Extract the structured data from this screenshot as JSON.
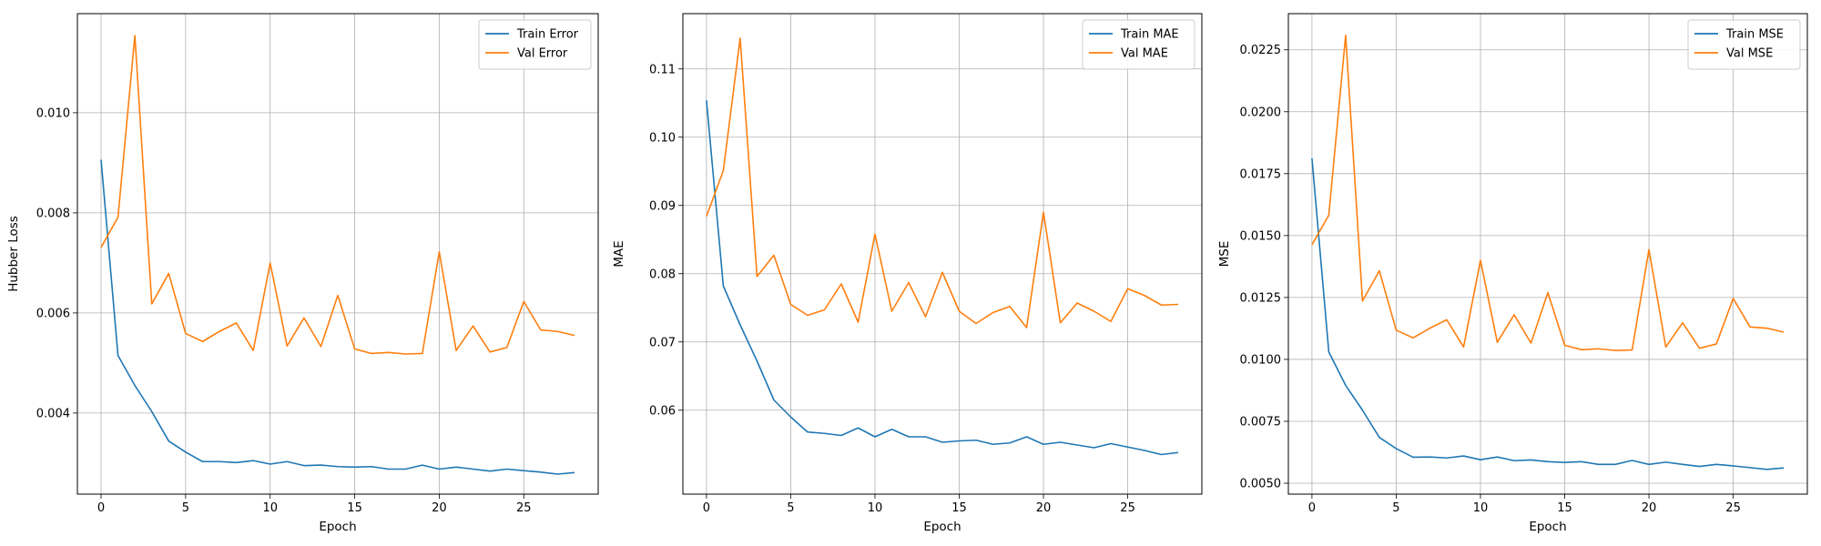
{
  "colors": {
    "train": "#1f77b4",
    "val": "#ff7f0e",
    "grid": "#b0b0b0",
    "axes": "#000000"
  },
  "chart_data": [
    {
      "type": "line",
      "xlabel": "Epoch",
      "ylabel": "Hubber Loss",
      "xlim": [
        -1.4,
        29.4
      ],
      "ylim": [
        0.00238,
        0.01198
      ],
      "xticks": [
        0,
        5,
        10,
        15,
        20,
        25
      ],
      "xtick_labels": [
        "0",
        "5",
        "10",
        "15",
        "20",
        "25"
      ],
      "yticks": [
        0.004,
        0.006,
        0.008,
        0.01
      ],
      "ytick_labels": [
        "0.004",
        "0.006",
        "0.008",
        "0.010"
      ],
      "grid": true,
      "legend_position": "top-right",
      "x": [
        0,
        1,
        2,
        3,
        4,
        5,
        6,
        7,
        8,
        9,
        10,
        11,
        12,
        13,
        14,
        15,
        16,
        17,
        18,
        19,
        20,
        21,
        22,
        23,
        24,
        25,
        26,
        27,
        28
      ],
      "series": [
        {
          "name": "Train Error",
          "color": "#1f77b4",
          "values": [
            0.00906,
            0.00515,
            0.00455,
            0.00403,
            0.00344,
            0.00322,
            0.00303,
            0.00303,
            0.00301,
            0.00305,
            0.00298,
            0.00303,
            0.00295,
            0.00296,
            0.00293,
            0.00292,
            0.00293,
            0.00288,
            0.00288,
            0.00296,
            0.00288,
            0.00292,
            0.00288,
            0.00284,
            0.00288,
            0.00285,
            0.00282,
            0.00278,
            0.00281
          ]
        },
        {
          "name": "Val Error",
          "color": "#ff7f0e",
          "values": [
            0.00731,
            0.00791,
            0.01154,
            0.00618,
            0.00679,
            0.00559,
            0.00543,
            0.00563,
            0.0058,
            0.00525,
            0.007,
            0.00534,
            0.0059,
            0.00533,
            0.00635,
            0.00528,
            0.00519,
            0.00521,
            0.00518,
            0.00519,
            0.00722,
            0.00525,
            0.00574,
            0.00522,
            0.00531,
            0.00623,
            0.00566,
            0.00563,
            0.00555
          ]
        }
      ]
    },
    {
      "type": "line",
      "xlabel": "Epoch",
      "ylabel": "MAE",
      "xlim": [
        -1.4,
        29.4
      ],
      "ylim": [
        0.0477,
        0.1181
      ],
      "xticks": [
        0,
        5,
        10,
        15,
        20,
        25
      ],
      "xtick_labels": [
        "0",
        "5",
        "10",
        "15",
        "20",
        "25"
      ],
      "yticks": [
        0.06,
        0.07,
        0.08,
        0.09,
        0.1,
        0.11
      ],
      "ytick_labels": [
        "0.06",
        "0.07",
        "0.08",
        "0.09",
        "0.10",
        "0.11"
      ],
      "grid": true,
      "legend_position": "top-right",
      "x": [
        0,
        1,
        2,
        3,
        4,
        5,
        6,
        7,
        8,
        9,
        10,
        11,
        12,
        13,
        14,
        15,
        16,
        17,
        18,
        19,
        20,
        21,
        22,
        23,
        24,
        25,
        26,
        27,
        28
      ],
      "series": [
        {
          "name": "Train MAE",
          "color": "#1f77b4",
          "values": [
            0.1054,
            0.0782,
            0.0725,
            0.0672,
            0.0615,
            0.059,
            0.0568,
            0.0566,
            0.0563,
            0.0574,
            0.0561,
            0.0572,
            0.0561,
            0.0561,
            0.0553,
            0.0555,
            0.0556,
            0.055,
            0.0552,
            0.0561,
            0.055,
            0.0553,
            0.0549,
            0.0545,
            0.0551,
            0.0546,
            0.0541,
            0.0535,
            0.0538
          ]
        },
        {
          "name": "Val MAE",
          "color": "#ff7f0e",
          "values": [
            0.0884,
            0.0951,
            0.1145,
            0.0796,
            0.0827,
            0.0755,
            0.0739,
            0.0747,
            0.0785,
            0.0729,
            0.0858,
            0.0745,
            0.0787,
            0.0737,
            0.0802,
            0.0745,
            0.0727,
            0.0743,
            0.0752,
            0.0721,
            0.089,
            0.0728,
            0.0757,
            0.0745,
            0.073,
            0.0778,
            0.0768,
            0.0754,
            0.0755
          ]
        }
      ]
    },
    {
      "type": "line",
      "xlabel": "Epoch",
      "ylabel": "MSE",
      "xlim": [
        -1.4,
        29.4
      ],
      "ylim": [
        0.00456,
        0.02396
      ],
      "xticks": [
        0,
        5,
        10,
        15,
        20,
        25
      ],
      "xtick_labels": [
        "0",
        "5",
        "10",
        "15",
        "20",
        "25"
      ],
      "yticks": [
        0.005,
        0.0075,
        0.01,
        0.0125,
        0.015,
        0.0175,
        0.02,
        0.0225
      ],
      "ytick_labels": [
        "0.0050",
        "0.0075",
        "0.0100",
        "0.0125",
        "0.0150",
        "0.0175",
        "0.0200",
        "0.0225"
      ],
      "grid": true,
      "legend_position": "top-right",
      "x": [
        0,
        1,
        2,
        3,
        4,
        5,
        6,
        7,
        8,
        9,
        10,
        11,
        12,
        13,
        14,
        15,
        16,
        17,
        18,
        19,
        20,
        21,
        22,
        23,
        24,
        25,
        26,
        27,
        28
      ],
      "series": [
        {
          "name": "Train MSE",
          "color": "#1f77b4",
          "values": [
            0.01812,
            0.0103,
            0.00895,
            0.00795,
            0.00685,
            0.0064,
            0.00605,
            0.00606,
            0.00602,
            0.0061,
            0.00595,
            0.00606,
            0.00591,
            0.00594,
            0.00587,
            0.00584,
            0.00587,
            0.00576,
            0.00576,
            0.00592,
            0.00576,
            0.00585,
            0.00576,
            0.00568,
            0.00576,
            0.0057,
            0.00563,
            0.00556,
            0.00562
          ]
        },
        {
          "name": "Val MSE",
          "color": "#ff7f0e",
          "values": [
            0.01463,
            0.01582,
            0.02308,
            0.01236,
            0.01358,
            0.01118,
            0.01087,
            0.01126,
            0.0116,
            0.0105,
            0.014,
            0.01069,
            0.0118,
            0.01066,
            0.0127,
            0.01057,
            0.01039,
            0.01043,
            0.01036,
            0.01038,
            0.01443,
            0.0105,
            0.01148,
            0.01045,
            0.01062,
            0.01246,
            0.01131,
            0.01126,
            0.0111
          ]
        }
      ]
    }
  ]
}
